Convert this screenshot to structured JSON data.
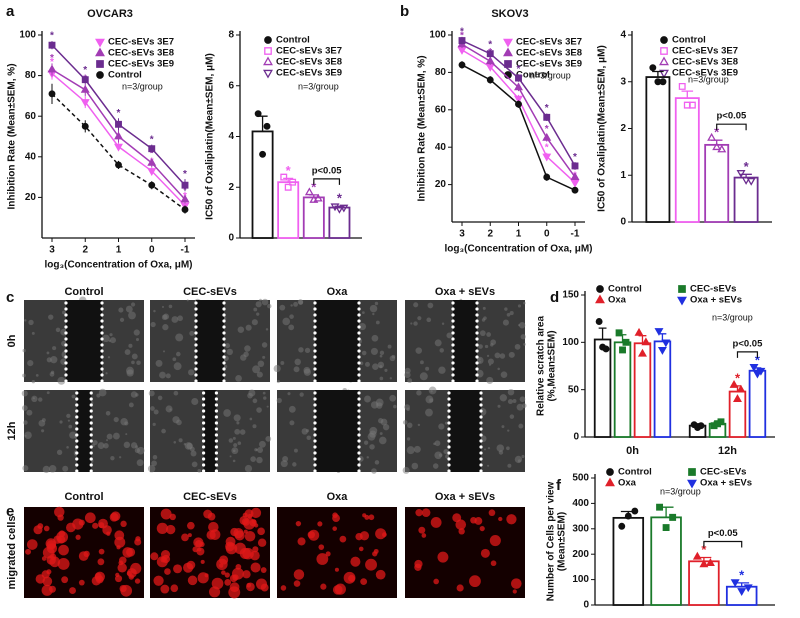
{
  "figure_labels": {
    "a": "a",
    "b": "b",
    "c": "c",
    "d": "d",
    "e": "e",
    "f": "f"
  },
  "images": {
    "panel_c": {
      "columns": [
        "Control",
        "CEC-sEVs",
        "Oxa",
        "Oxa + sEVs"
      ],
      "rows": [
        "0h",
        "12h"
      ]
    },
    "panel_e": {
      "columns": [
        "Control",
        "CEC-sEVs",
        "Oxa",
        "Oxa + sEVs"
      ],
      "rows": [
        "migrated cells"
      ]
    }
  },
  "chart_data": [
    {
      "type": "line",
      "title": "OVCAR3",
      "xlabel": "log₃(Concentration of Oxa, μM)",
      "ylabel": "Inhibition Rate (Mean±SEM, %)",
      "categories": [
        "3",
        "2",
        "1",
        "0",
        "-1"
      ],
      "ylim": [
        0,
        100
      ],
      "yticks": [
        20,
        40,
        60,
        80,
        100
      ],
      "annotation": "n=3/group",
      "series": [
        {
          "name": "CEC-sEVs 3E7",
          "color": "#f060f0",
          "marker": "triangle-down",
          "significance": "*",
          "values": [
            81,
            67,
            45,
            33,
            16
          ],
          "errors": [
            3,
            3,
            2,
            2,
            2
          ]
        },
        {
          "name": "CEC-sEVs 3E8",
          "color": "#a23cb4",
          "marker": "triangle",
          "significance": "*",
          "values": [
            83,
            73,
            50,
            37,
            19
          ],
          "errors": [
            3,
            3,
            3,
            2,
            2
          ]
        },
        {
          "name": "CEC-sEVs 3E9",
          "color": "#6b2c8f",
          "marker": "square",
          "significance": "*",
          "values": [
            95,
            78,
            56,
            44,
            26
          ],
          "errors": [
            2,
            2,
            3,
            2,
            3
          ]
        },
        {
          "name": "Control",
          "color": "#111111",
          "marker": "circle",
          "line_style": "dashed",
          "values": [
            71,
            55,
            36,
            26,
            14
          ],
          "errors": [
            5,
            3,
            2,
            2,
            2
          ]
        }
      ]
    },
    {
      "type": "bar",
      "ylabel": "IC50 of Oxaliplatin(Mean±SEM, μM)",
      "categories": [
        null
      ],
      "ylim": [
        0,
        8
      ],
      "yticks": [
        0,
        2,
        4,
        6,
        8
      ],
      "annotation": "n=3/group",
      "bracket_label": "p<0.05",
      "series": [
        {
          "name": "Control",
          "color": "#111111",
          "marker": "circle",
          "values": [
            4.2
          ],
          "errors": [
            0.6
          ],
          "points": [
            [
              4.9,
              3.3,
              4.4
            ]
          ]
        },
        {
          "name": "CEC-sEVs 3E7",
          "color": "#f060f0",
          "marker": "square",
          "significance": [
            "*"
          ],
          "values": [
            2.2
          ],
          "errors": [
            0.15
          ],
          "points": [
            [
              2.4,
              2.0,
              2.2
            ]
          ]
        },
        {
          "name": "CEC-sEVs 3E8",
          "color": "#a23cb4",
          "marker": "triangle",
          "significance": [
            "*"
          ],
          "values": [
            1.6
          ],
          "errors": [
            0.1
          ],
          "points": [
            [
              1.8,
              1.5,
              1.55
            ]
          ]
        },
        {
          "name": "CEC-sEVs 3E9",
          "color": "#6b2c8f",
          "marker": "triangle-down",
          "significance": [
            "*"
          ],
          "values": [
            1.2
          ],
          "errors": [
            0.05
          ],
          "points": [
            [
              1.25,
              1.15,
              1.2
            ]
          ]
        }
      ]
    },
    {
      "type": "line",
      "title": "SKOV3",
      "xlabel": "log₃(Concentration of Oxa, μM)",
      "ylabel": "Inhibition Rate (Mean±SEM, %)",
      "categories": [
        "3",
        "2",
        "1",
        "0",
        "-1"
      ],
      "ylim": [
        0,
        100
      ],
      "yticks": [
        20,
        40,
        60,
        80,
        100
      ],
      "annotation": "n=3/group",
      "series": [
        {
          "name": "CEC-sEVs 3E7",
          "color": "#f060f0",
          "marker": "triangle-down",
          "significance": "*",
          "values": [
            92,
            83,
            66,
            35,
            21
          ],
          "errors": [
            2,
            2,
            2,
            2,
            1
          ]
        },
        {
          "name": "CEC-sEVs 3E8",
          "color": "#a23cb4",
          "marker": "triangle",
          "significance": "*",
          "values": [
            95,
            86,
            72,
            45,
            24
          ],
          "errors": [
            2,
            2,
            2,
            2,
            1
          ]
        },
        {
          "name": "CEC-sEVs 3E9",
          "color": "#6b2c8f",
          "marker": "square",
          "significance": "*",
          "values": [
            97,
            90,
            77,
            56,
            30
          ],
          "errors": [
            2,
            2,
            2,
            2,
            2
          ]
        },
        {
          "name": "Control",
          "color": "#111111",
          "marker": "circle",
          "values": [
            84,
            76,
            63,
            24,
            17
          ],
          "errors": [
            2,
            2,
            2,
            2,
            1
          ]
        }
      ]
    },
    {
      "type": "bar",
      "ylabel": "IC50 of Oxaliplatin(Mean±SEM, μM)",
      "categories": [
        null
      ],
      "ylim": [
        0,
        4
      ],
      "yticks": [
        0,
        1,
        2,
        3,
        4
      ],
      "annotation": "n=3/group",
      "bracket_label": "p<0.05",
      "series": [
        {
          "name": "Control",
          "color": "#111111",
          "marker": "circle",
          "values": [
            3.1
          ],
          "errors": [
            0.12
          ],
          "points": [
            [
              3.3,
              3.0,
              3.0
            ]
          ]
        },
        {
          "name": "CEC-sEVs 3E7",
          "color": "#f060f0",
          "marker": "square",
          "values": [
            2.65
          ],
          "errors": [
            0.15
          ],
          "points": [
            [
              2.9,
              2.5,
              2.5
            ]
          ]
        },
        {
          "name": "CEC-sEVs 3E8",
          "color": "#a23cb4",
          "marker": "triangle",
          "significance": [
            "*"
          ],
          "values": [
            1.65
          ],
          "errors": [
            0.1
          ],
          "points": [
            [
              1.8,
              1.6,
              1.55
            ]
          ]
        },
        {
          "name": "CEC-sEVs 3E9",
          "color": "#6b2c8f",
          "marker": "triangle-down",
          "significance": [
            "*"
          ],
          "values": [
            0.95
          ],
          "errors": [
            0.07
          ],
          "points": [
            [
              1.05,
              0.9,
              0.88
            ]
          ]
        }
      ]
    },
    {
      "type": "bar",
      "ylabel": [
        "Relative scratch area",
        "(%,Mean±SEM)"
      ],
      "categories": [
        "0h",
        "12h"
      ],
      "ylim": [
        0,
        150
      ],
      "yticks": [
        0,
        50,
        100,
        150
      ],
      "annotation": "n=3/group",
      "bracket_label": "p<0.05",
      "series": [
        {
          "name": "Control",
          "color": "#111111",
          "marker": "circle",
          "values": [
            103,
            12
          ],
          "errors": [
            12,
            2
          ],
          "points": [
            [
              122,
              95,
              93
            ],
            [
              13,
              10,
              12
            ]
          ]
        },
        {
          "name": "CEC-sEVs",
          "color": "#1a7a2a",
          "marker": "square",
          "values": [
            100,
            14
          ],
          "errors": [
            8,
            2
          ],
          "points": [
            [
              110,
              92,
              100
            ],
            [
              12,
              14,
              16
            ]
          ]
        },
        {
          "name": "Oxa",
          "color": "#e0202a",
          "marker": "triangle",
          "significance": [
            null,
            "*"
          ],
          "values": [
            99,
            48
          ],
          "errors": [
            8,
            6
          ],
          "points": [
            [
              110,
              88,
              100
            ],
            [
              55,
              40,
              50
            ]
          ]
        },
        {
          "name": "Oxa + sEVs",
          "color": "#2030e0",
          "marker": "triangle-down",
          "significance": [
            null,
            "*"
          ],
          "values": [
            101,
            70
          ],
          "errors": [
            8,
            3
          ],
          "points": [
            [
              112,
              92,
              100
            ],
            [
              74,
              67,
              70
            ]
          ]
        }
      ]
    },
    {
      "type": "bar",
      "ylabel": [
        "Number of Cells per view",
        "(Mean±SEM)"
      ],
      "categories": [
        null
      ],
      "ylim": [
        0,
        500
      ],
      "yticks": [
        0,
        100,
        200,
        300,
        400,
        500
      ],
      "annotation": "n=3/group",
      "bracket_label": "p<0.05",
      "series": [
        {
          "name": "Control",
          "color": "#111111",
          "marker": "circle",
          "values": [
            343
          ],
          "errors": [
            25
          ],
          "points": [
            [
              310,
              350,
              370
            ]
          ]
        },
        {
          "name": "CEC-sEVs",
          "color": "#1a7a2a",
          "marker": "square",
          "values": [
            345
          ],
          "errors": [
            40
          ],
          "points": [
            [
              385,
              305,
              345
            ]
          ]
        },
        {
          "name": "Oxa",
          "color": "#e0202a",
          "marker": "triangle",
          "significance": [
            "*"
          ],
          "values": [
            172
          ],
          "errors": [
            15
          ],
          "points": [
            [
              190,
              160,
              165
            ]
          ]
        },
        {
          "name": "Oxa + sEVs",
          "color": "#2030e0",
          "marker": "triangle-down",
          "significance": [
            "*"
          ],
          "values": [
            72
          ],
          "errors": [
            15
          ],
          "points": [
            [
              90,
              55,
              70
            ]
          ]
        }
      ]
    }
  ]
}
